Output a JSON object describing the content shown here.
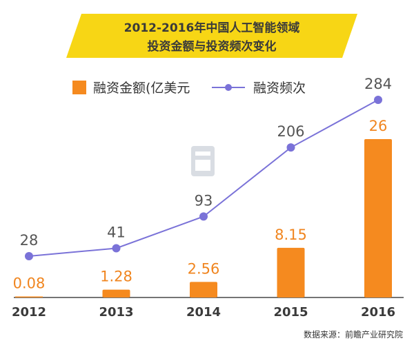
{
  "chart_data": {
    "type": "bar+line",
    "title_line1": "2012-2016年中国人工智能领域",
    "title_line2": "投资金额与投资频次变化",
    "categories": [
      "2012",
      "2013",
      "2014",
      "2015",
      "2016"
    ],
    "series": [
      {
        "name": "融资金额(亿美元",
        "type": "bar",
        "values": [
          0.08,
          1.28,
          2.56,
          8.15,
          26
        ],
        "labels": [
          "0.08",
          "1.28",
          "2.56",
          "8.15",
          "26"
        ]
      },
      {
        "name": "融资频次",
        "type": "line",
        "values": [
          28,
          41,
          93,
          206,
          284
        ],
        "labels": [
          "28",
          "41",
          "93",
          "206",
          "284"
        ]
      }
    ],
    "legend_position": "top",
    "grid": false,
    "source": "数据来源：前瞻产业研究院"
  },
  "colors": {
    "bar": "#f58a1f",
    "line": "#7a72d8",
    "title_bg": "#f7d615",
    "axis": "#222222"
  }
}
